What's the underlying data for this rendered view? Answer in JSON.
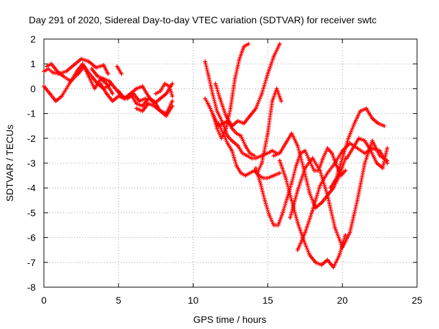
{
  "chart_data": {
    "type": "scatter",
    "title": "Day 291 of 2020, Sidereal Day-to-day VTEC variation (SDTVAR) for receiver swtc",
    "xlabel": "GPS time / hours",
    "ylabel": "SDTVAR / TECUs",
    "xlim": [
      0,
      25
    ],
    "ylim": [
      -8,
      2
    ],
    "xticks": [
      "0",
      "5",
      "10",
      "15",
      "20",
      "25"
    ],
    "yticks": [
      "2",
      "1",
      "0",
      "-1",
      "-2",
      "-3",
      "-4",
      "-5",
      "-6",
      "-7",
      "-8"
    ],
    "xtick_values": [
      0,
      5,
      10,
      15,
      20,
      25
    ],
    "ytick_values": [
      2,
      1,
      0,
      -1,
      -2,
      -3,
      -4,
      -5,
      -6,
      -7,
      -8
    ],
    "grid": true,
    "marker": "plus",
    "color": "#ff0000",
    "series": [
      {
        "x": [
          0.0,
          0.3,
          0.6,
          1.0,
          1.5,
          2.0,
          2.5,
          3.0,
          3.5,
          4.0,
          4.3
        ],
        "y": [
          0.7,
          0.8,
          0.65,
          0.6,
          0.7,
          0.95,
          1.2,
          1.1,
          0.85,
          0.95,
          0.6
        ]
      },
      {
        "x": [
          0.0,
          0.4,
          0.8,
          1.2,
          1.7,
          2.2,
          2.6,
          3.0,
          3.4,
          3.8,
          4.2,
          4.6
        ],
        "y": [
          0.1,
          -0.2,
          -0.5,
          -0.3,
          0.2,
          0.7,
          1.0,
          0.5,
          0.0,
          0.4,
          0.2,
          -0.2
        ]
      },
      {
        "x": [
          0.2,
          0.5,
          0.9,
          1.3,
          1.8,
          2.3,
          2.7,
          3.2,
          3.6,
          4.0,
          4.5
        ],
        "y": [
          0.9,
          1.0,
          0.7,
          0.5,
          0.3,
          0.6,
          0.9,
          0.5,
          0.2,
          0.0,
          0.2
        ]
      },
      {
        "x": [
          3.2,
          3.6,
          4.0,
          4.4,
          4.8,
          5.2,
          5.6,
          6.0,
          6.4,
          6.8
        ],
        "y": [
          0.8,
          0.5,
          0.4,
          0.3,
          0.0,
          -0.3,
          -0.4,
          -0.2,
          -0.5,
          -0.4
        ]
      },
      {
        "x": [
          3.8,
          4.2,
          4.6,
          5.0,
          5.4,
          5.8,
          6.2,
          6.6,
          7.0,
          7.4,
          7.8,
          8.2,
          8.6
        ],
        "y": [
          0.2,
          -0.2,
          -0.5,
          -0.3,
          -0.4,
          -0.2,
          -0.6,
          -0.7,
          -0.4,
          -0.5,
          -0.9,
          -1.0,
          -0.5
        ]
      },
      {
        "x": [
          4.9,
          5.2
        ],
        "y": [
          0.9,
          0.6
        ]
      },
      {
        "x": [
          5.0,
          5.4,
          5.8,
          6.2,
          6.6,
          7.0,
          7.4,
          7.8,
          8.2,
          8.6
        ],
        "y": [
          -0.1,
          -0.4,
          -0.2,
          0.0,
          0.1,
          -0.3,
          -0.6,
          -0.4,
          -0.2,
          0.2
        ]
      },
      {
        "x": [
          6.2,
          6.6,
          7.0,
          7.4,
          7.8,
          8.2,
          8.6
        ],
        "y": [
          -0.8,
          -0.9,
          -0.6,
          -0.7,
          -0.9,
          -1.1,
          -0.7
        ]
      },
      {
        "x": [
          7.5,
          7.8,
          8.1,
          8.4,
          8.6
        ],
        "y": [
          -0.2,
          -0.1,
          0.2,
          0.1,
          -0.3
        ]
      },
      {
        "x": [
          10.8,
          11.0,
          11.3,
          11.6,
          12.0,
          12.3,
          12.6,
          13.0,
          13.3,
          13.6,
          13.9,
          14.2,
          14.6,
          15.0,
          15.3,
          15.6
        ],
        "y": [
          1.1,
          0.6,
          -0.2,
          -0.9,
          -1.4,
          -1.9,
          -2.1,
          -2.3,
          -2.6,
          -2.7,
          -2.8,
          -2.8,
          -2.7,
          -2.6,
          -2.5,
          -2.6
        ]
      },
      {
        "x": [
          10.8,
          11.0,
          11.3,
          11.6,
          11.9,
          12.2,
          12.5,
          12.8,
          13.1,
          13.4,
          13.7
        ],
        "y": [
          -0.4,
          -0.6,
          -1.0,
          -1.6,
          -2.0,
          -1.6,
          -0.8,
          0.4,
          1.2,
          1.7,
          1.8
        ]
      },
      {
        "x": [
          11.0,
          11.3,
          11.7,
          12.0,
          12.3,
          12.6,
          12.9,
          13.2,
          13.5,
          13.8,
          14.1
        ],
        "y": [
          -0.6,
          -1.0,
          -1.5,
          -1.4,
          -1.3,
          -1.6,
          -1.8,
          -1.9,
          -2.3,
          -2.6,
          -2.7
        ]
      },
      {
        "x": [
          11.5,
          11.8,
          12.2,
          12.6,
          13.0,
          13.4,
          13.8,
          14.2,
          14.6,
          15.0,
          15.4,
          15.8
        ],
        "y": [
          0.2,
          -0.4,
          -1.1,
          -1.5,
          -1.3,
          -1.4,
          -1.1,
          -0.8,
          -0.2,
          0.6,
          1.3,
          1.8
        ]
      },
      {
        "x": [
          11.7,
          12.0,
          12.3,
          12.6,
          12.9,
          13.2,
          13.5,
          13.8,
          14.1,
          14.4,
          14.7,
          15.0,
          15.4,
          15.8
        ],
        "y": [
          -1.4,
          -1.8,
          -2.2,
          -2.5,
          -3.1,
          -3.4,
          -3.5,
          -3.4,
          -3.3,
          -3.5,
          -3.6,
          -3.6,
          -3.5,
          -3.4
        ]
      },
      {
        "x": [
          14.2,
          14.5,
          14.8,
          15.1,
          15.4,
          15.7,
          16.0,
          16.3,
          16.6,
          16.9,
          17.2,
          17.5,
          17.8,
          18.1,
          18.4,
          18.7,
          19.0,
          19.3,
          19.6,
          19.9,
          20.2
        ],
        "y": [
          -3.2,
          -3.8,
          -4.5,
          -5.1,
          -5.5,
          -5.5,
          -5.0,
          -4.4,
          -3.8,
          -3.1,
          -2.6,
          -2.5,
          -2.9,
          -3.3,
          -3.3,
          -2.8,
          -2.4,
          -2.6,
          -3.1,
          -3.5,
          -3.3
        ]
      },
      {
        "x": [
          14.3,
          14.6,
          15.0,
          15.3,
          15.6,
          15.9
        ],
        "y": [
          -3.4,
          -3.0,
          -1.8,
          -0.5,
          0.0,
          -0.5
        ]
      },
      {
        "x": [
          15.8,
          16.2,
          16.6,
          17.0,
          17.4,
          17.8,
          18.2,
          18.6,
          19.0,
          19.4,
          19.8,
          20.2
        ],
        "y": [
          -2.9,
          -3.6,
          -4.5,
          -5.4,
          -6.1,
          -6.7,
          -7.0,
          -7.1,
          -6.9,
          -7.2,
          -6.7,
          -5.9
        ]
      },
      {
        "x": [
          15.4,
          15.8,
          16.2,
          16.6,
          17.0,
          17.4,
          17.8,
          18.2,
          18.6,
          19.0,
          19.4,
          19.8,
          20.2
        ],
        "y": [
          -2.7,
          -2.6,
          -2.2,
          -1.8,
          -2.3,
          -3.2,
          -4.2,
          -4.8,
          -4.6,
          -4.3,
          -4.0,
          -3.5,
          -2.8
        ]
      },
      {
        "x": [
          16.5,
          17.0,
          17.5,
          18.0,
          18.5,
          19.0,
          19.5,
          20.0,
          20.5,
          21.0,
          21.5,
          22.0,
          22.5,
          23.0
        ],
        "y": [
          -5.2,
          -4.1,
          -3.2,
          -2.8,
          -3.3,
          -4.3,
          -5.6,
          -6.4,
          -5.8,
          -4.5,
          -3.0,
          -2.1,
          -2.7,
          -2.9
        ]
      },
      {
        "x": [
          17.0,
          17.5,
          18.0,
          18.5,
          19.0,
          19.5,
          20.0,
          20.5,
          21.0,
          21.5,
          22.0,
          22.5,
          23.0
        ],
        "y": [
          -6.5,
          -5.8,
          -4.9,
          -3.9,
          -3.4,
          -3.0,
          -2.5,
          -2.2,
          -2.4,
          -2.6,
          -2.4,
          -2.5,
          -3.0
        ]
      },
      {
        "x": [
          19.2,
          19.6,
          20.0,
          20.4,
          20.8,
          21.2,
          21.6,
          22.0,
          22.4,
          22.8
        ],
        "y": [
          -4.0,
          -3.6,
          -2.8,
          -2.0,
          -1.4,
          -0.9,
          -0.8,
          -1.2,
          -1.4,
          -1.5
        ]
      },
      {
        "x": [
          20.3,
          20.7,
          21.1,
          21.5,
          21.9,
          22.3,
          22.7,
          23.0
        ],
        "y": [
          -2.8,
          -2.4,
          -2.0,
          -2.1,
          -2.5,
          -3.0,
          -3.2,
          -2.4
        ]
      }
    ]
  }
}
